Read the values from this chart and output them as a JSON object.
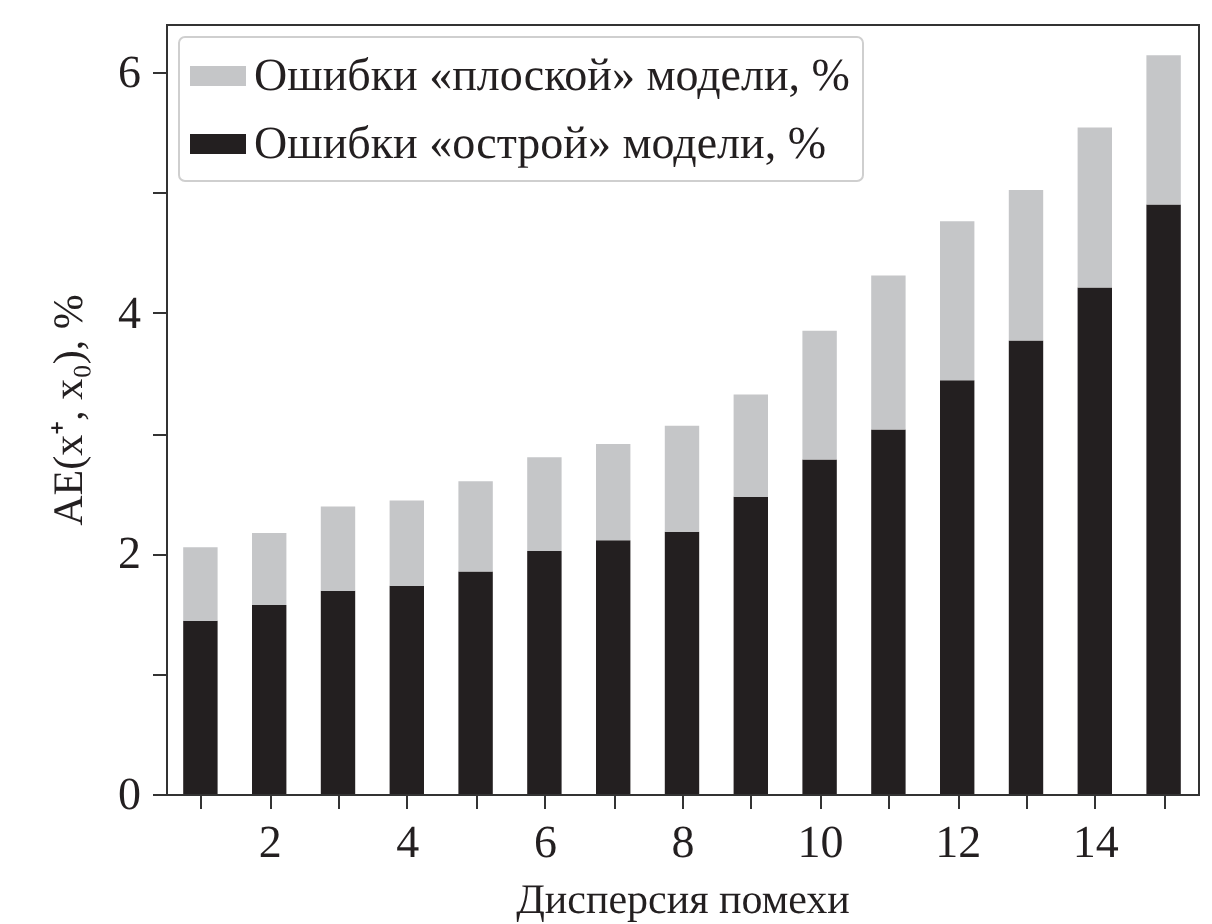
{
  "chart_data": {
    "type": "bar",
    "xlabel": "Дисперсия помехи",
    "ylabel": "AE(x⁺, x₀), %",
    "x": [
      1,
      2,
      3,
      4,
      5,
      6,
      7,
      8,
      9,
      10,
      11,
      12,
      13,
      14,
      15
    ],
    "xlim": [
      0.5,
      15.5
    ],
    "xticks": [
      {
        "value": 1,
        "label": null
      },
      2,
      {
        "value": 3,
        "label": null
      },
      4,
      {
        "value": 5,
        "label": null
      },
      6,
      {
        "value": 7,
        "label": null
      },
      8,
      {
        "value": 9,
        "label": null
      },
      10,
      {
        "value": 11,
        "label": null
      },
      12,
      {
        "value": 13,
        "label": null
      },
      14,
      {
        "value": 15,
        "label": null
      }
    ],
    "ylim": [
      0,
      6.4
    ],
    "yticks": [
      0,
      {
        "value": 1,
        "label": null
      },
      2,
      {
        "value": 3,
        "label": null
      },
      4,
      {
        "value": 5,
        "label": null
      },
      6
    ],
    "stacked": true,
    "series": [
      {
        "name": "Ошибки «острой» модели, %",
        "color": "#231f20",
        "values": [
          1.44,
          1.57,
          1.69,
          1.73,
          1.85,
          2.02,
          2.11,
          2.18,
          2.47,
          2.78,
          3.03,
          3.44,
          3.77,
          4.21,
          4.9
        ]
      },
      {
        "name": "Ошибки «плоской» модели, %",
        "color": "#c5c6c8",
        "values": [
          0.61,
          0.6,
          0.7,
          0.71,
          0.75,
          0.78,
          0.8,
          0.88,
          0.85,
          1.07,
          1.28,
          1.32,
          1.25,
          1.33,
          1.24
        ]
      }
    ],
    "legend": "top left",
    "grid": false
  }
}
